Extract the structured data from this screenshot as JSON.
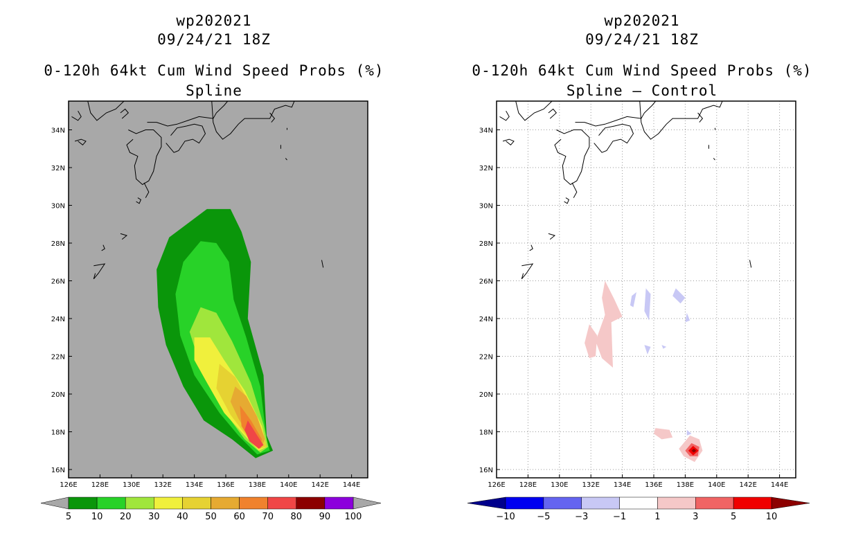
{
  "colors": {
    "land_bg": "#a8a8a8",
    "white_bg": "#ffffff",
    "prob": [
      "#0a960a",
      "#28d228",
      "#a0e63c",
      "#f0f03c",
      "#e6d232",
      "#e6aa32",
      "#f0822d",
      "#f04646",
      "#8c0000",
      "#8c00dc"
    ],
    "diff_neg": [
      "#00008c",
      "#0000f0",
      "#6464f0",
      "#c8c8f5"
    ],
    "diff_neutral": "#ffffff",
    "diff_pos": [
      "#f5c8c8",
      "#f06464",
      "#f00000",
      "#8c0000"
    ]
  },
  "left_panel": {
    "storm_id": "wp202021",
    "datetime": "09/24/21 18Z",
    "product": "0-120h 64kt Cum Wind Speed Probs (%)",
    "method": "Spline",
    "colorbar_labels": [
      "5",
      "10",
      "20",
      "30",
      "40",
      "50",
      "60",
      "70",
      "80",
      "90",
      "100"
    ]
  },
  "right_panel": {
    "storm_id": "wp202021",
    "datetime": "09/24/21 18Z",
    "product": "0-120h 64kt Cum Wind Speed Probs (%)",
    "method": "Spline – Control",
    "colorbar_labels": [
      "−10",
      "−5",
      "−3",
      "−1",
      "1",
      "3",
      "5",
      "10"
    ]
  },
  "chart_data": [
    {
      "type": "heatmap",
      "title": "0-120h 64kt Cum Wind Speed Probs (%) Spline",
      "x_ticks": [
        "126E",
        "128E",
        "130E",
        "132E",
        "134E",
        "136E",
        "138E",
        "140E",
        "142E",
        "144E"
      ],
      "y_ticks": [
        "16N",
        "18N",
        "20N",
        "22N",
        "24N",
        "26N",
        "28N",
        "30N",
        "32N",
        "34N"
      ],
      "xlim_lon": [
        126,
        144.5
      ],
      "ylim_lat": [
        15.5,
        35.5
      ],
      "levels": [
        5,
        10,
        20,
        30,
        40,
        50,
        60,
        70,
        80,
        90,
        100
      ],
      "grid": false,
      "contours": [
        {
          "level": 5,
          "outline_lonlat": [
            [
              134.8,
              29.8
            ],
            [
              136.3,
              29.8
            ],
            [
              137,
              28.6
            ],
            [
              137.6,
              27
            ],
            [
              137.4,
              24
            ],
            [
              138.4,
              21
            ],
            [
              138.6,
              17.8
            ],
            [
              139,
              17
            ],
            [
              137.9,
              16.6
            ],
            [
              136.4,
              17.6
            ],
            [
              134.6,
              18.6
            ],
            [
              133.3,
              20.4
            ],
            [
              132.2,
              22.6
            ],
            [
              131.7,
              24.6
            ],
            [
              131.6,
              26.6
            ],
            [
              132.4,
              28.3
            ]
          ]
        },
        {
          "level": 10,
          "outline_lonlat": [
            [
              134.4,
              28.1
            ],
            [
              135.4,
              28
            ],
            [
              136.2,
              27
            ],
            [
              136.5,
              25
            ],
            [
              137.3,
              23
            ],
            [
              138.2,
              20.4
            ],
            [
              138.6,
              17.6
            ],
            [
              138.8,
              17
            ],
            [
              138,
              16.8
            ],
            [
              136.8,
              17.8
            ],
            [
              135.6,
              19
            ],
            [
              134,
              21
            ],
            [
              133.1,
              23.1
            ],
            [
              132.8,
              25.3
            ],
            [
              133.3,
              27
            ]
          ]
        },
        {
          "level": 20,
          "outline_lonlat": [
            [
              134.4,
              24.6
            ],
            [
              135.4,
              24.3
            ],
            [
              136.4,
              22.8
            ],
            [
              137.6,
              20.6
            ],
            [
              138.4,
              18.4
            ],
            [
              138.7,
              17.2
            ],
            [
              138.2,
              16.9
            ],
            [
              137.2,
              17.6
            ],
            [
              135.8,
              19.2
            ],
            [
              134.5,
              21.2
            ],
            [
              133.7,
              23.3
            ]
          ]
        },
        {
          "level": 30,
          "outline_lonlat": [
            [
              134,
              23
            ],
            [
              135,
              23
            ],
            [
              135.9,
              21.8
            ],
            [
              137.2,
              20.2
            ],
            [
              138.3,
              18.3
            ],
            [
              138.6,
              17.2
            ],
            [
              138.1,
              17
            ],
            [
              137.2,
              17.8
            ],
            [
              135.9,
              19
            ],
            [
              134.8,
              20.6
            ],
            [
              134,
              21.8
            ]
          ]
        },
        {
          "level": 40,
          "outline_lonlat": [
            [
              135.6,
              21.6
            ],
            [
              136.6,
              20.9
            ],
            [
              137.6,
              19.4
            ],
            [
              138.4,
              17.8
            ],
            [
              138.6,
              17.2
            ],
            [
              138.1,
              17.1
            ],
            [
              137.3,
              17.8
            ],
            [
              136.3,
              18.9
            ],
            [
              135.4,
              20.3
            ]
          ]
        },
        {
          "level": 50,
          "outline_lonlat": [
            [
              136.6,
              20.4
            ],
            [
              137.3,
              19.9
            ],
            [
              138,
              18.8
            ],
            [
              138.5,
              17.6
            ],
            [
              138.2,
              17.1
            ],
            [
              137.6,
              17.6
            ],
            [
              136.8,
              18.7
            ],
            [
              136.3,
              19.6
            ]
          ]
        },
        {
          "level": 60,
          "outline_lonlat": [
            [
              136.9,
              19.4
            ],
            [
              137.6,
              18.6
            ],
            [
              138.3,
              17.6
            ],
            [
              138.2,
              17.2
            ],
            [
              137.6,
              17.5
            ],
            [
              137,
              18.3
            ]
          ]
        },
        {
          "level": 70,
          "outline_lonlat": [
            [
              137.4,
              18.6
            ],
            [
              138,
              17.8
            ],
            [
              138.4,
              17.3
            ],
            [
              138.1,
              17.1
            ],
            [
              137.5,
              17.5
            ],
            [
              137.2,
              18.1
            ]
          ]
        }
      ],
      "colorbar_min_label": "5",
      "colorbar_max_label": "100"
    },
    {
      "type": "heatmap",
      "title": "0-120h 64kt Cum Wind Speed Probs (%) Spline – Control",
      "x_ticks": [
        "126E",
        "128E",
        "130E",
        "132E",
        "134E",
        "136E",
        "138E",
        "140E",
        "142E",
        "144E"
      ],
      "y_ticks": [
        "16N",
        "18N",
        "20N",
        "22N",
        "24N",
        "26N",
        "28N",
        "30N",
        "32N",
        "34N"
      ],
      "xlim_lon": [
        126,
        144.5
      ],
      "ylim_lat": [
        15.5,
        35.5
      ],
      "levels": [
        -10,
        -5,
        -3,
        -1,
        1,
        3,
        5,
        10
      ],
      "grid": true,
      "contours": [
        {
          "level": 1,
          "outline_lonlat": [
            [
              132.9,
              26
            ],
            [
              133.5,
              25
            ],
            [
              134,
              24.1
            ],
            [
              133.3,
              23.8
            ],
            [
              133.4,
              21.4
            ],
            [
              132.7,
              21.9
            ],
            [
              132.3,
              22.8
            ],
            [
              132.9,
              24.2
            ],
            [
              132.7,
              25.1
            ]
          ]
        },
        {
          "level": 1,
          "outline_lonlat": [
            [
              131.9,
              23.7
            ],
            [
              132.4,
              23.1
            ],
            [
              132.3,
              22
            ],
            [
              131.9,
              21.9
            ],
            [
              131.6,
              22.7
            ]
          ]
        },
        {
          "level": -1,
          "outline_lonlat": [
            [
              134.6,
              25.2
            ],
            [
              134.9,
              25.4
            ],
            [
              134.7,
              24.6
            ],
            [
              134.5,
              24.7
            ]
          ]
        },
        {
          "level": -1,
          "outline_lonlat": [
            [
              135.5,
              25.6
            ],
            [
              135.8,
              25.3
            ],
            [
              135.7,
              23.9
            ],
            [
              135.4,
              24.4
            ]
          ]
        },
        {
          "level": -1,
          "outline_lonlat": [
            [
              137.4,
              25.6
            ],
            [
              138,
              25.1
            ],
            [
              137.7,
              24.8
            ],
            [
              137.2,
              25.2
            ]
          ]
        },
        {
          "level": -1,
          "outline_lonlat": [
            [
              135.4,
              22.6
            ],
            [
              135.8,
              22.5
            ],
            [
              135.6,
              22.1
            ]
          ]
        },
        {
          "level": -1,
          "outline_lonlat": [
            [
              138.1,
              24.3
            ],
            [
              138.3,
              23.9
            ],
            [
              138,
              23.8
            ]
          ]
        },
        {
          "level": -1,
          "outline_lonlat": [
            [
              136.5,
              22.6
            ],
            [
              136.8,
              22.5
            ],
            [
              136.6,
              22.4
            ]
          ]
        },
        {
          "level": 1,
          "outline_lonlat": [
            [
              136.1,
              18.2
            ],
            [
              137,
              18.1
            ],
            [
              137.2,
              17.7
            ],
            [
              136.5,
              17.6
            ],
            [
              136,
              17.9
            ]
          ]
        },
        {
          "level": -1,
          "outline_lonlat": [
            [
              138.1,
              18.1
            ],
            [
              138.4,
              17.9
            ],
            [
              138.1,
              17.8
            ]
          ]
        },
        {
          "level": 1,
          "outline_lonlat": [
            [
              138.3,
              17.8
            ],
            [
              138.9,
              17.6
            ],
            [
              139.1,
              17
            ],
            [
              138.6,
              16.4
            ],
            [
              137.9,
              16.7
            ],
            [
              137.6,
              17.1
            ]
          ]
        },
        {
          "level": 3,
          "outline_lonlat": [
            [
              138.4,
              17.4
            ],
            [
              138.9,
              17.2
            ],
            [
              138.8,
              16.7
            ],
            [
              138.3,
              16.7
            ],
            [
              138,
              17
            ]
          ]
        },
        {
          "level": 5,
          "outline_lonlat": [
            [
              138.5,
              17.25
            ],
            [
              138.85,
              17
            ],
            [
              138.5,
              16.75
            ],
            [
              138.2,
              17
            ]
          ]
        },
        {
          "level": 10,
          "outline_lonlat": [
            [
              138.55,
              17.1
            ],
            [
              138.7,
              17
            ],
            [
              138.55,
              16.9
            ],
            [
              138.4,
              17
            ]
          ]
        }
      ],
      "colorbar_min_label": "−10",
      "colorbar_max_label": "10"
    }
  ]
}
